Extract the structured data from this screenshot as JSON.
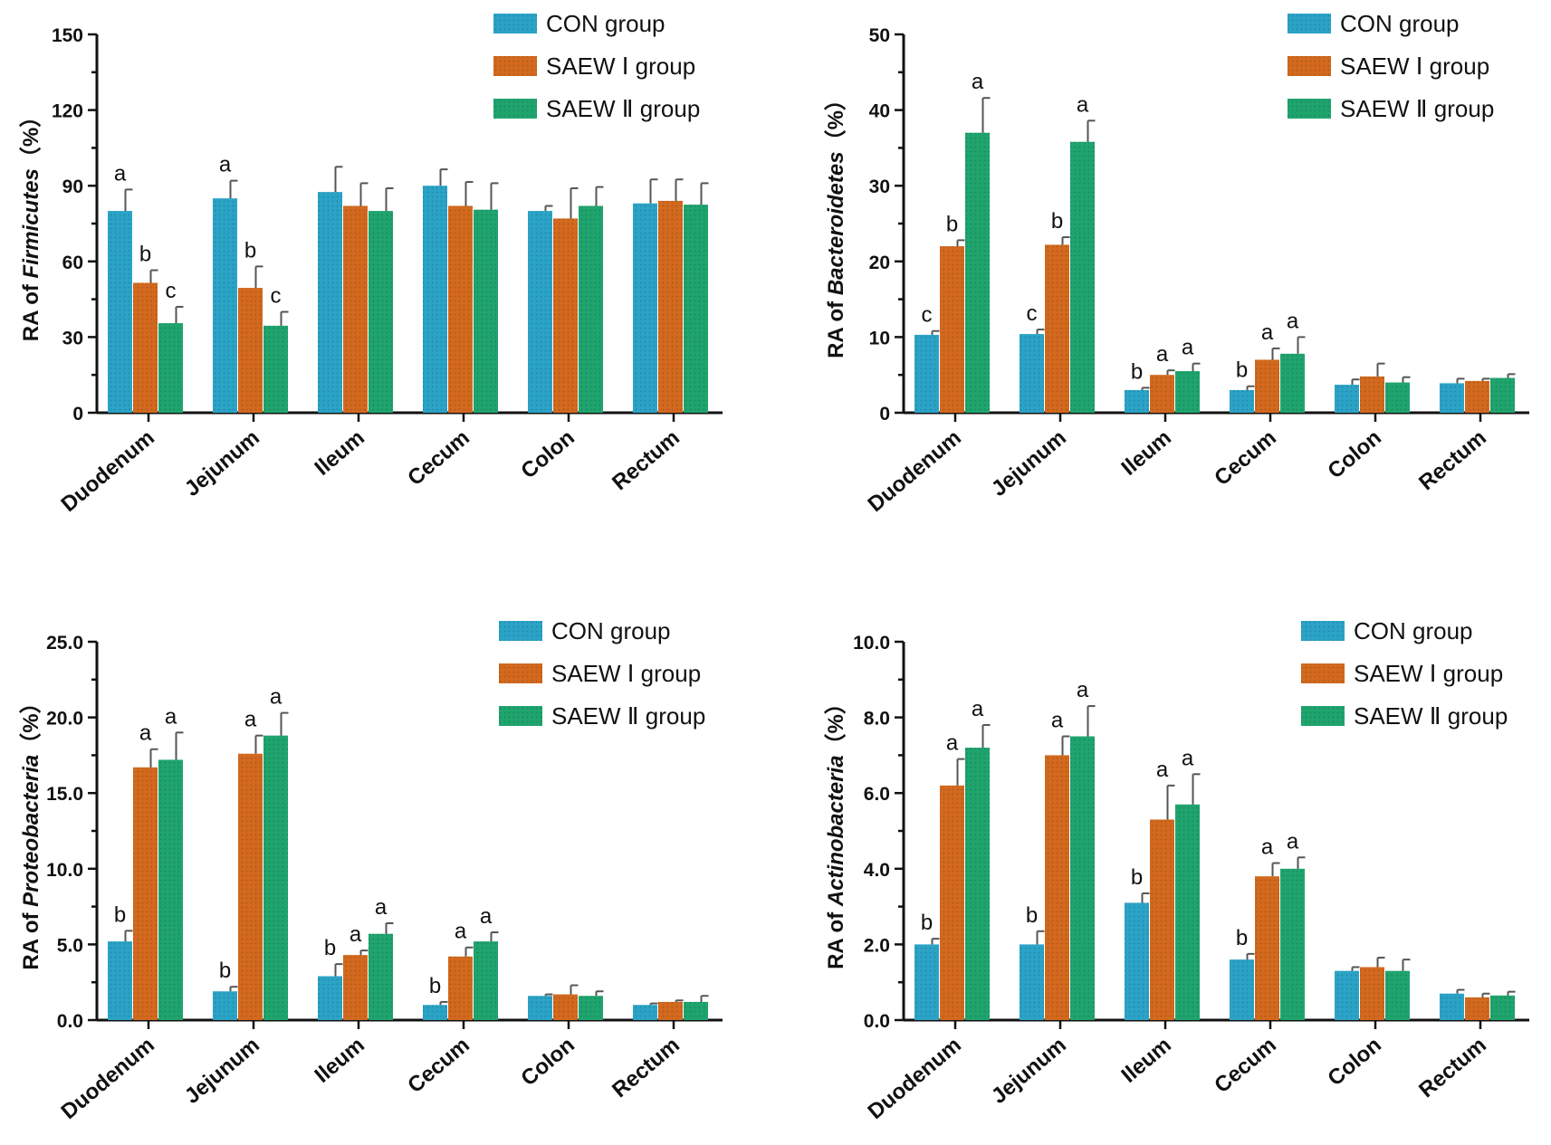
{
  "legend": [
    {
      "name": "CON group",
      "color": "#2ba3c7"
    },
    {
      "name": "SAEW Ⅰ group",
      "color": "#d2691e"
    },
    {
      "name": "SAEW Ⅱ group",
      "color": "#1fa46e"
    }
  ],
  "chart_data": [
    {
      "type": "bar",
      "ylabel_prefix": "RA of ",
      "ylabel_taxon": "Firmicutes",
      "ylabel_suffix": "（%）",
      "ylim": [
        0,
        150
      ],
      "yticks": [
        0,
        30,
        60,
        90,
        120,
        150
      ],
      "ytick_labels": [
        "0",
        "30",
        "60",
        "90",
        "120",
        "150"
      ],
      "categories": [
        "Duodenum",
        "Jejunum",
        "Ileum",
        "Cecum",
        "Colon",
        "Rectum"
      ],
      "series": [
        {
          "name": "CON group",
          "values": [
            80,
            85,
            87.5,
            90,
            80,
            83
          ],
          "errors": [
            8.5,
            7,
            10,
            6.5,
            2,
            9.5
          ],
          "letters": [
            "a",
            "a",
            "",
            "",
            "",
            ""
          ]
        },
        {
          "name": "SAEW Ⅰ group",
          "values": [
            51.5,
            49.5,
            82,
            82,
            77,
            84
          ],
          "errors": [
            5,
            8.5,
            9,
            9.5,
            12,
            8.5
          ],
          "letters": [
            "b",
            "b",
            "",
            "",
            "",
            ""
          ]
        },
        {
          "name": "SAEW Ⅱ group",
          "values": [
            35.5,
            34.5,
            80,
            80.5,
            82,
            82.5
          ],
          "errors": [
            6.5,
            5.5,
            9,
            10.5,
            7.5,
            8.5
          ],
          "letters": [
            "c",
            "c",
            "",
            "",
            "",
            ""
          ]
        }
      ]
    },
    {
      "type": "bar",
      "ylabel_prefix": "RA of ",
      "ylabel_taxon": "Bacteroidetes",
      "ylabel_suffix": "（%）",
      "ylim": [
        0,
        50
      ],
      "yticks": [
        0,
        10,
        20,
        30,
        40,
        50
      ],
      "ytick_labels": [
        "0",
        "10",
        "20",
        "30",
        "40",
        "50"
      ],
      "categories": [
        "Duodenum",
        "Jejunum",
        "Ileum",
        "Cecum",
        "Colon",
        "Rectum"
      ],
      "series": [
        {
          "name": "CON group",
          "values": [
            10.3,
            10.4,
            3,
            3,
            3.7,
            3.9
          ],
          "errors": [
            0.5,
            0.6,
            0.3,
            0.5,
            0.7,
            0.6
          ],
          "letters": [
            "c",
            "c",
            "b",
            "b",
            "",
            ""
          ]
        },
        {
          "name": "SAEW Ⅰ group",
          "values": [
            22,
            22.2,
            5,
            7,
            4.8,
            4.2
          ],
          "errors": [
            0.8,
            1,
            0.6,
            1.5,
            1.7,
            0.3
          ],
          "letters": [
            "b",
            "b",
            "a",
            "a",
            "",
            ""
          ]
        },
        {
          "name": "SAEW Ⅱ group",
          "values": [
            37,
            35.8,
            5.5,
            7.8,
            4,
            4.6
          ],
          "errors": [
            4.6,
            2.8,
            1,
            2.2,
            0.7,
            0.5
          ],
          "letters": [
            "a",
            "a",
            "a",
            "a",
            "",
            ""
          ]
        }
      ]
    },
    {
      "type": "bar",
      "ylabel_prefix": "RA of ",
      "ylabel_taxon": "Proteobacteria",
      "ylabel_suffix": "（%）",
      "ylim": [
        0,
        25
      ],
      "yticks": [
        0,
        5,
        10,
        15,
        20,
        25
      ],
      "ytick_labels": [
        "0.0",
        "5.0",
        "10.0",
        "15.0",
        "20.0",
        "25.0"
      ],
      "categories": [
        "Duodenum",
        "Jejunum",
        "Ileum",
        "Cecum",
        "Colon",
        "Rectum"
      ],
      "series": [
        {
          "name": "CON group",
          "values": [
            5.2,
            1.9,
            2.9,
            1,
            1.6,
            1
          ],
          "errors": [
            0.7,
            0.3,
            0.8,
            0.2,
            0.1,
            0.1
          ],
          "letters": [
            "b",
            "b",
            "b",
            "b",
            "",
            ""
          ]
        },
        {
          "name": "SAEW Ⅰ group",
          "values": [
            16.7,
            17.6,
            4.3,
            4.2,
            1.7,
            1.2
          ],
          "errors": [
            1.2,
            1.2,
            0.3,
            0.6,
            0.6,
            0.1
          ],
          "letters": [
            "a",
            "a",
            "a",
            "a",
            "",
            ""
          ]
        },
        {
          "name": "SAEW Ⅱ group",
          "values": [
            17.2,
            18.8,
            5.7,
            5.2,
            1.6,
            1.2
          ],
          "errors": [
            1.8,
            1.5,
            0.7,
            0.6,
            0.3,
            0.4
          ],
          "letters": [
            "a",
            "a",
            "a",
            "a",
            "",
            ""
          ]
        }
      ]
    },
    {
      "type": "bar",
      "ylabel_prefix": "RA of ",
      "ylabel_taxon": "Actinobacteria",
      "ylabel_suffix": "（%）",
      "ylim": [
        0,
        10
      ],
      "yticks": [
        0,
        2,
        4,
        6,
        8,
        10
      ],
      "ytick_labels": [
        "0.0",
        "2.0",
        "4.0",
        "6.0",
        "8.0",
        "10.0"
      ],
      "categories": [
        "Duodenum",
        "Jejunum",
        "Ileum",
        "Cecum",
        "Colon",
        "Rectum"
      ],
      "series": [
        {
          "name": "CON group",
          "values": [
            2,
            2,
            3.1,
            1.6,
            1.3,
            0.7
          ],
          "errors": [
            0.15,
            0.35,
            0.25,
            0.15,
            0.1,
            0.1
          ],
          "letters": [
            "b",
            "b",
            "b",
            "b",
            "",
            ""
          ]
        },
        {
          "name": "SAEW Ⅰ group",
          "values": [
            6.2,
            7,
            5.3,
            3.8,
            1.4,
            0.6
          ],
          "errors": [
            0.7,
            0.5,
            0.9,
            0.35,
            0.25,
            0.1
          ],
          "letters": [
            "a",
            "a",
            "a",
            "a",
            "",
            ""
          ]
        },
        {
          "name": "SAEW Ⅱ group",
          "values": [
            7.2,
            7.5,
            5.7,
            4,
            1.3,
            0.65
          ],
          "errors": [
            0.6,
            0.8,
            0.8,
            0.3,
            0.3,
            0.1
          ],
          "letters": [
            "a",
            "a",
            "a",
            "a",
            "",
            ""
          ]
        }
      ]
    }
  ]
}
